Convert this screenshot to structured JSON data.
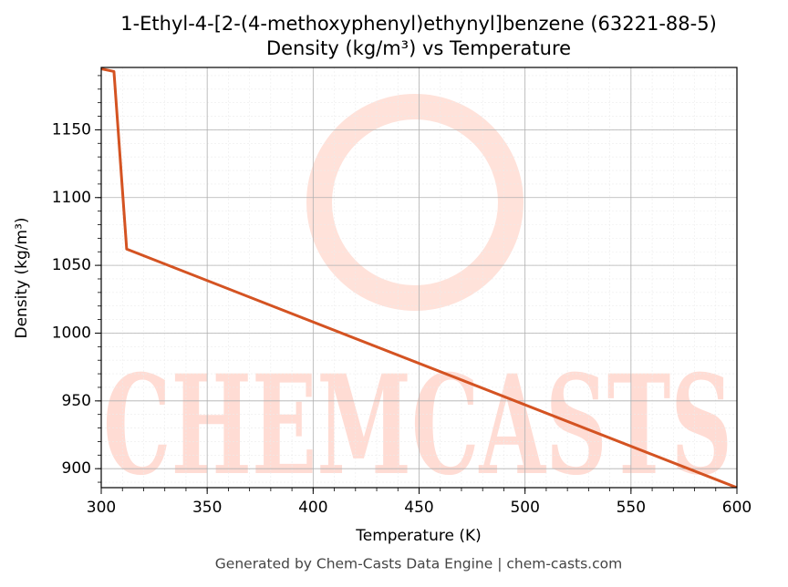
{
  "chart_data": {
    "type": "line",
    "title": "1-Ethyl-4-[2-(4-methoxyphenyl)ethynyl]benzene (63221-88-5)",
    "subtitle": "Density (kg/m³) vs Temperature",
    "x_label": "Temperature (K)",
    "y_label": "Density (kg/m³)",
    "footer": "Generated by Chem-Casts Data Engine | chem-casts.com",
    "watermark": "CHEMCASTS",
    "x": [
      300,
      306,
      312,
      600
    ],
    "series": [
      {
        "name": "Density",
        "color": "#d45322",
        "values": [
          1195,
          1193,
          1062,
          886
        ]
      }
    ],
    "xlim": [
      300,
      600
    ],
    "xticks": [
      300,
      350,
      400,
      450,
      500,
      550,
      600
    ],
    "ylim": [
      886,
      1196
    ],
    "yticks": [
      900,
      950,
      1000,
      1050,
      1100,
      1150
    ],
    "grid": true
  }
}
